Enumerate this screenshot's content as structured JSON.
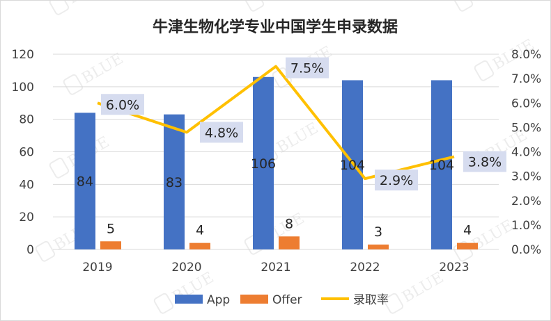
{
  "chart_data": {
    "type": "bar",
    "title": "牛津生物化学专业中国学生申录数据",
    "categories": [
      "2019",
      "2020",
      "2021",
      "2022",
      "2023"
    ],
    "series": [
      {
        "name": "App",
        "type": "bar",
        "axis": "left",
        "color": "#4472C4",
        "values": [
          84,
          83,
          106,
          104,
          104
        ]
      },
      {
        "name": "Offer",
        "type": "bar",
        "axis": "left",
        "color": "#ED7D31",
        "values": [
          5,
          4,
          8,
          3,
          4
        ]
      },
      {
        "name": "录取率",
        "type": "line",
        "axis": "right",
        "color": "#FFC000",
        "values": [
          6.0,
          4.8,
          7.5,
          2.9,
          3.8
        ],
        "labels": [
          "6.0%",
          "4.8%",
          "7.5%",
          "2.9%",
          "3.8%"
        ]
      }
    ],
    "left_axis": {
      "ylim": [
        0,
        120
      ],
      "ticks": [
        "0",
        "20",
        "40",
        "60",
        "80",
        "100",
        "120"
      ]
    },
    "right_axis": {
      "ylim": [
        0,
        8
      ],
      "ticks": [
        "0.0%",
        "1.0%",
        "2.0%",
        "3.0%",
        "4.0%",
        "5.0%",
        "6.0%",
        "7.0%",
        "8.0%"
      ]
    },
    "grid": true,
    "legend_position": "bottom",
    "watermark": "BLUE"
  }
}
